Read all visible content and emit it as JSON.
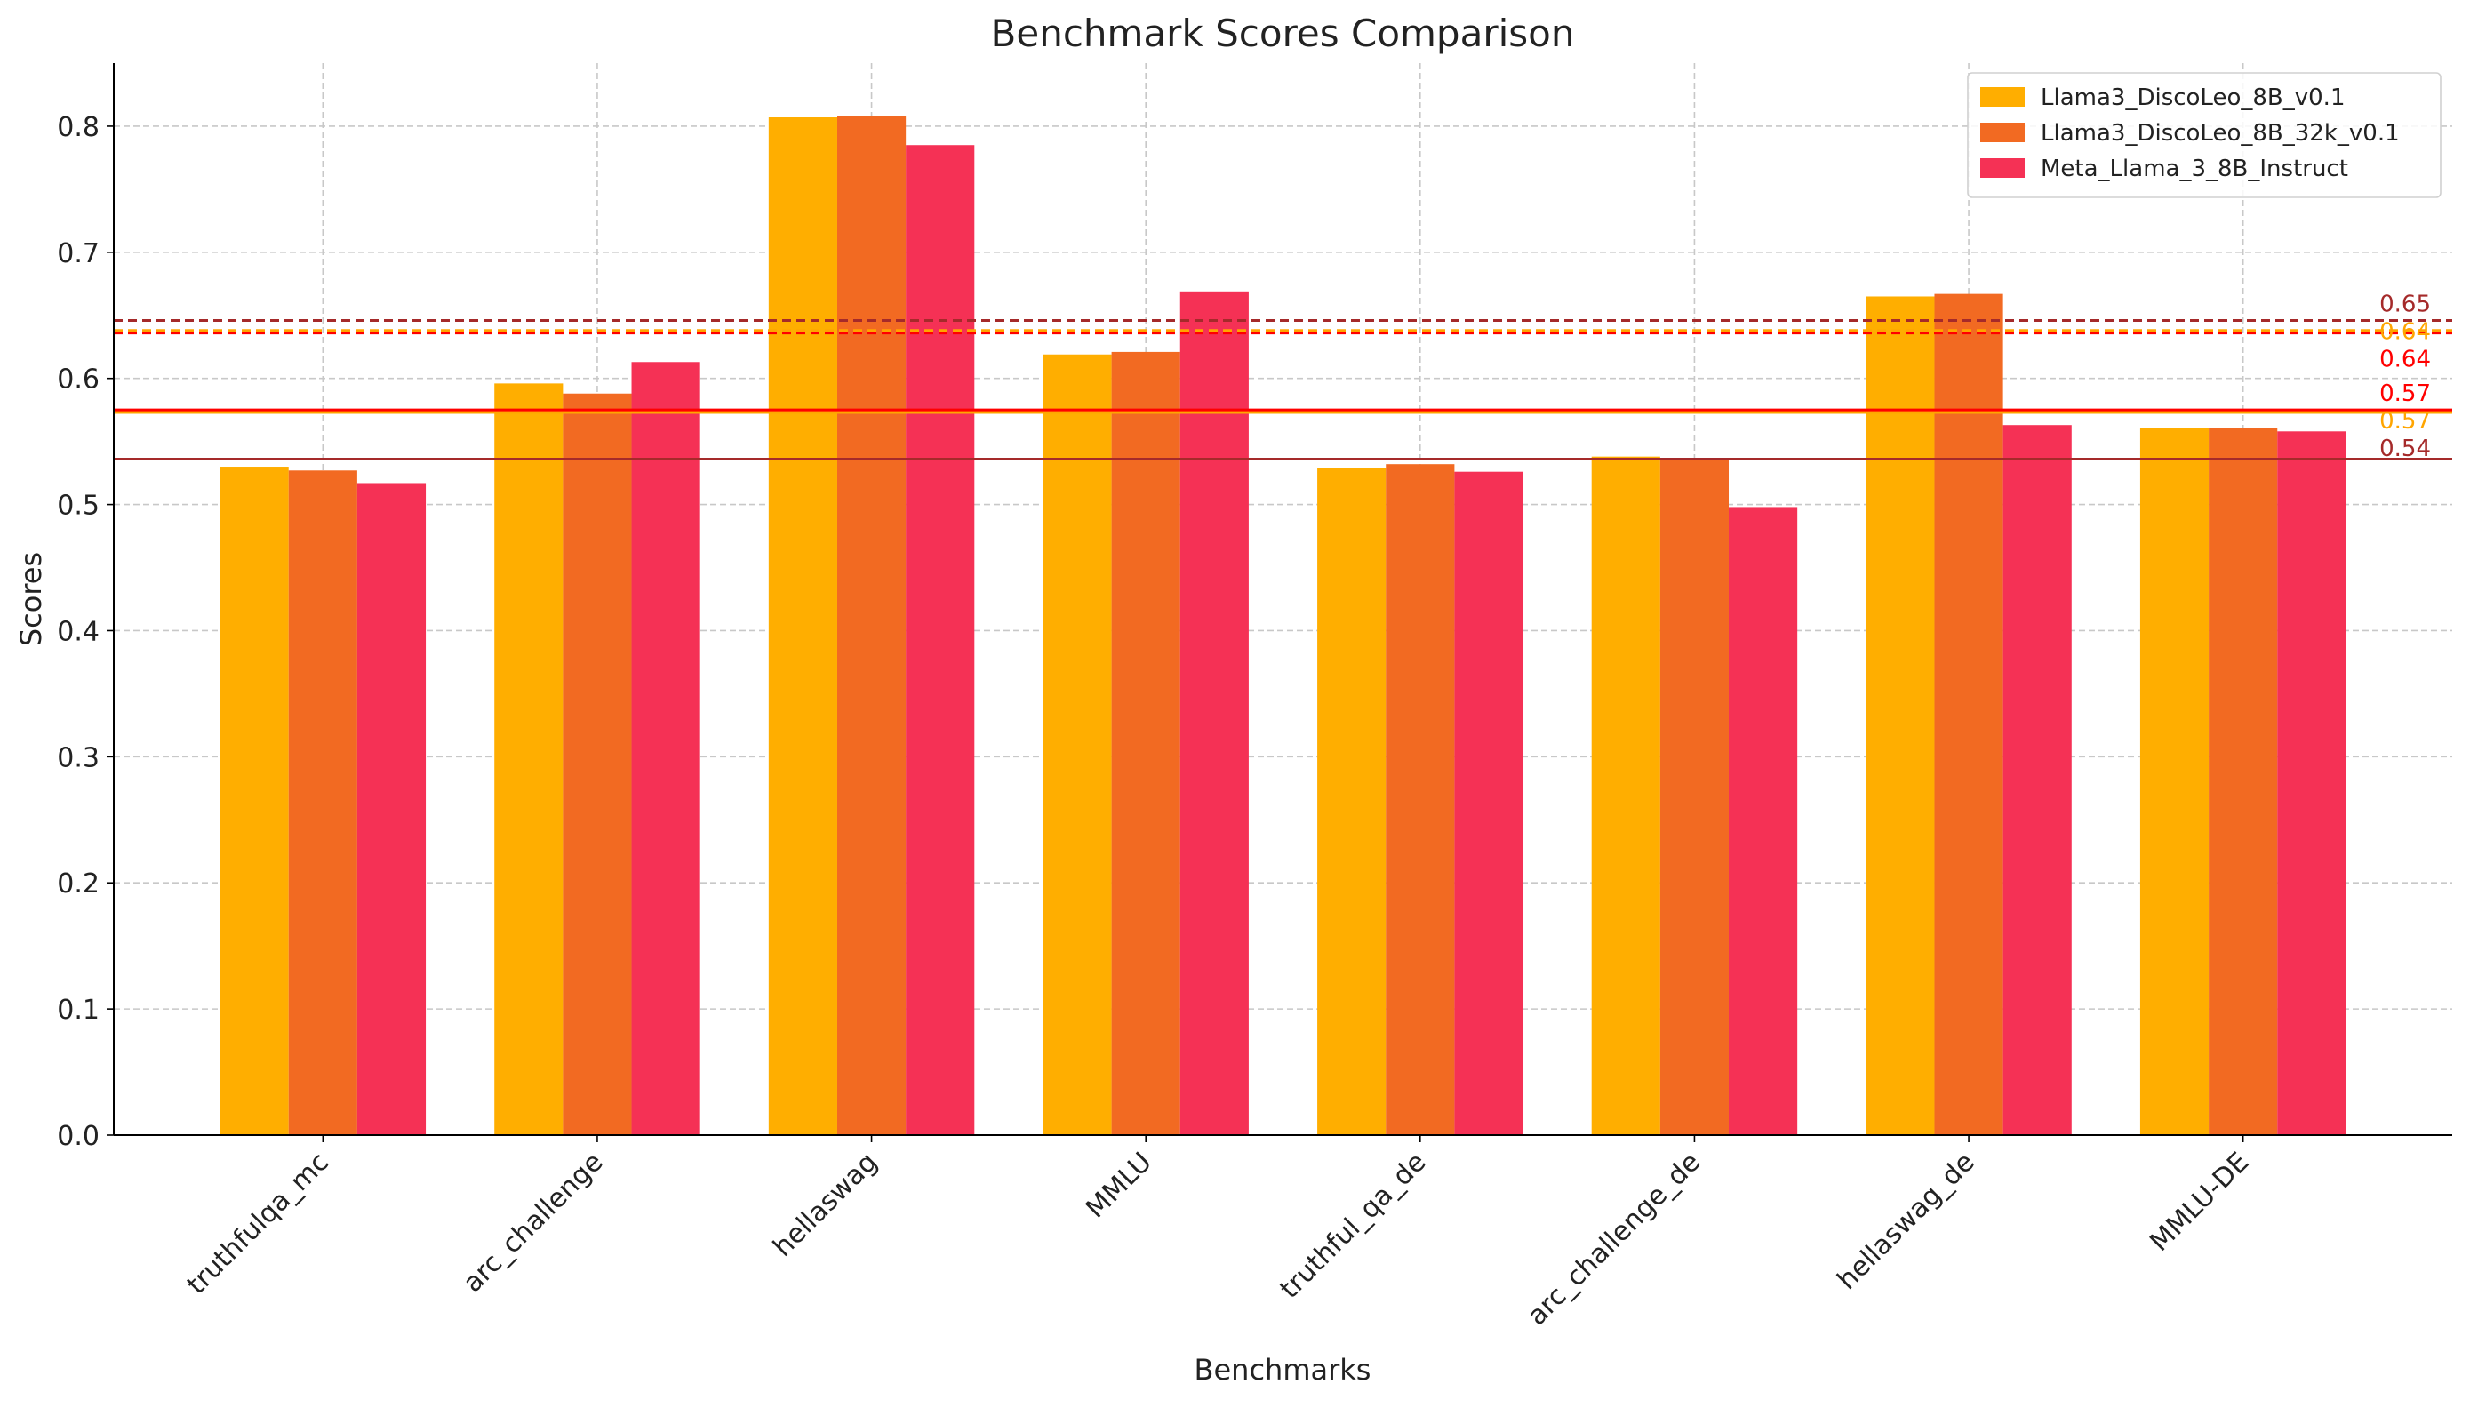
{
  "chart_data": {
    "type": "bar",
    "title": "Benchmark Scores Comparison",
    "xlabel": "Benchmarks",
    "ylabel": "Scores",
    "ylim": [
      0,
      0.85
    ],
    "yticks": [
      "0.0",
      "0.1",
      "0.2",
      "0.3",
      "0.4",
      "0.5",
      "0.6",
      "0.7",
      "0.8"
    ],
    "grid": true,
    "legend_position": "top-right",
    "categories": [
      "truthfulqa_mc",
      "arc_challenge",
      "hellaswag",
      "MMLU",
      "truthful_qa_de",
      "arc_challenge_de",
      "hellaswag_de",
      "MMLU-DE"
    ],
    "series": [
      {
        "name": "Llama3_DiscoLeo_8B_v0.1",
        "color": "#FFAE00",
        "values": [
          0.53,
          0.596,
          0.807,
          0.619,
          0.529,
          0.538,
          0.665,
          0.561
        ]
      },
      {
        "name": "Llama3_DiscoLeo_8B_32k_v0.1",
        "color": "#F26A22",
        "values": [
          0.527,
          0.588,
          0.808,
          0.621,
          0.532,
          0.537,
          0.667,
          0.561
        ]
      },
      {
        "name": "Meta_Llama_3_8B_Instruct",
        "color": "#F53155",
        "values": [
          0.517,
          0.613,
          0.785,
          0.669,
          0.526,
          0.498,
          0.563,
          0.558
        ]
      }
    ],
    "reference_lines": [
      {
        "value": 0.646,
        "label": "0.65",
        "color": "#A52A2A",
        "style": "dashed"
      },
      {
        "value": 0.638,
        "label": "0.64",
        "color": "#FFA500",
        "style": "dashed"
      },
      {
        "value": 0.636,
        "label": "0.64",
        "color": "#FF0000",
        "style": "dashed"
      },
      {
        "value": 0.573,
        "label": "0.57",
        "color": "#FFA500",
        "style": "solid"
      },
      {
        "value": 0.575,
        "label": "0.57",
        "color": "#FF0000",
        "style": "solid"
      },
      {
        "value": 0.536,
        "label": "0.54",
        "color": "#A52A2A",
        "style": "solid"
      }
    ]
  }
}
